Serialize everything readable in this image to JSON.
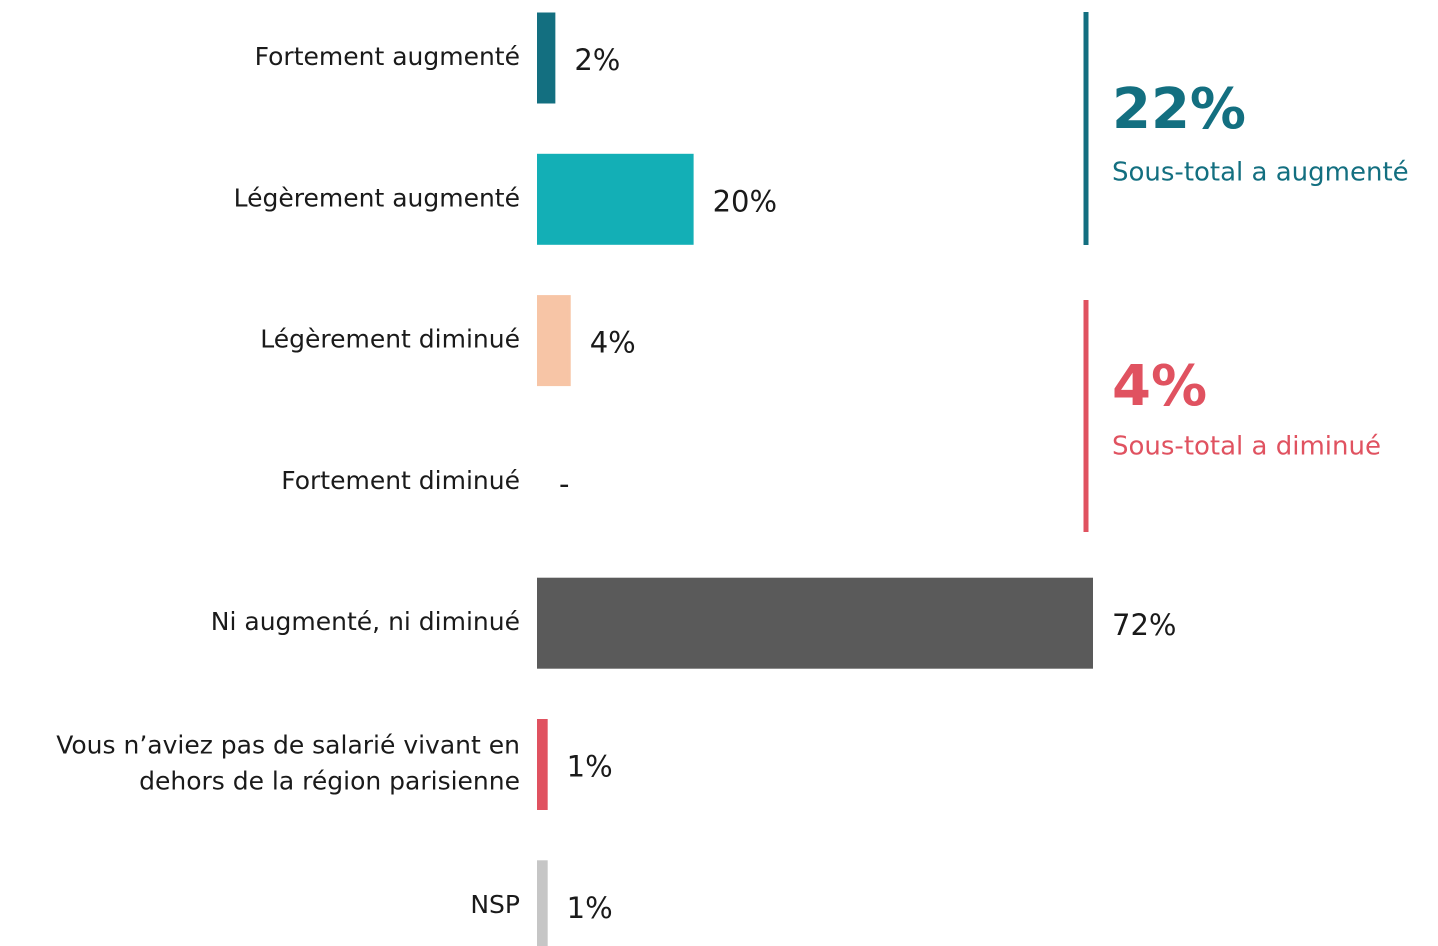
{
  "chart_data": {
    "type": "hbar",
    "categories": [
      "Fortement augmenté",
      "Légèrement augmenté",
      "Légèrement diminué",
      "Fortement diminué",
      "Ni augmenté, ni diminué",
      "Vous n’aviez pas de salarié vivant en dehors de la région parisienne",
      "NSP"
    ],
    "values": [
      2,
      20,
      4,
      0,
      72,
      1,
      1
    ],
    "value_labels": [
      "2%",
      "20%",
      "4%",
      "-",
      "72%",
      "1%",
      "1%"
    ],
    "colors": [
      "#136f80",
      "#13afb6",
      "#f7c5a6",
      "#e05260",
      "#5a5a5a",
      "#e05260",
      "#c6c6c6"
    ],
    "annotations": [
      {
        "value": "22%",
        "text": "Sous-total a augmenté",
        "color": "#136f80"
      },
      {
        "value": "4%",
        "text": "Sous-total a diminué",
        "color": "#e05260"
      }
    ]
  }
}
